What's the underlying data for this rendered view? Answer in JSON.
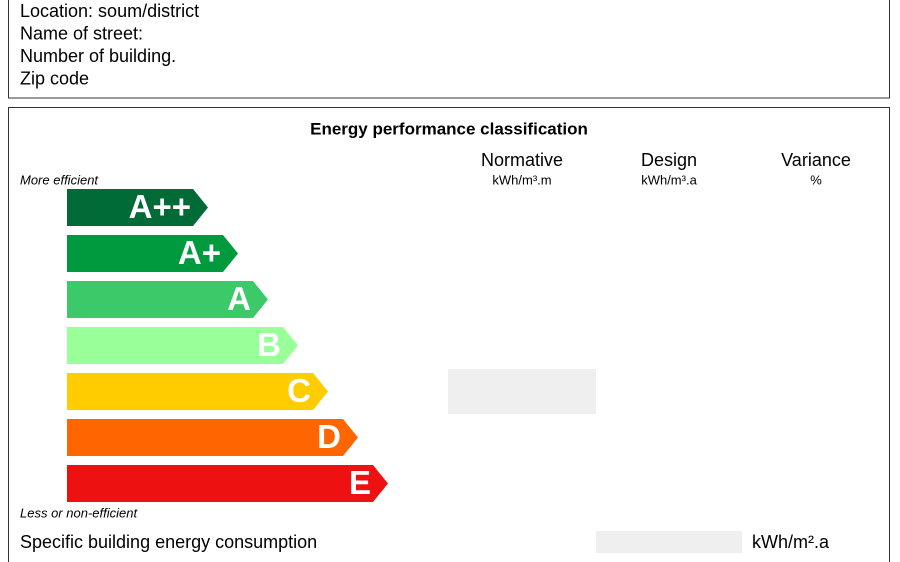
{
  "address": {
    "lines": [
      "Location: soum/district",
      "Name of street:",
      "Number of building.",
      "Zip code"
    ]
  },
  "classification": {
    "title": "Energy performance classification",
    "columns": [
      {
        "name": "Normative",
        "unit": "kWh/m³.m"
      },
      {
        "name": "Design",
        "unit": "kWh/m³.a"
      },
      {
        "name": "Variance",
        "unit": "%"
      }
    ],
    "top_label": "More efficient",
    "bottom_label": "Less or non-efficient",
    "classes": [
      {
        "label": "A++",
        "color": "#006b36"
      },
      {
        "label": "A+",
        "color": "#009a3e"
      },
      {
        "label": "A",
        "color": "#3cc96a"
      },
      {
        "label": "B",
        "color": "#99ff99"
      },
      {
        "label": "C",
        "color": "#ffcc00"
      },
      {
        "label": "D",
        "color": "#ff6600"
      },
      {
        "label": "E",
        "color": "#ee1111"
      }
    ],
    "consumption_label": "Specific building energy consumption",
    "consumption_unit": "kWh/m².a"
  }
}
